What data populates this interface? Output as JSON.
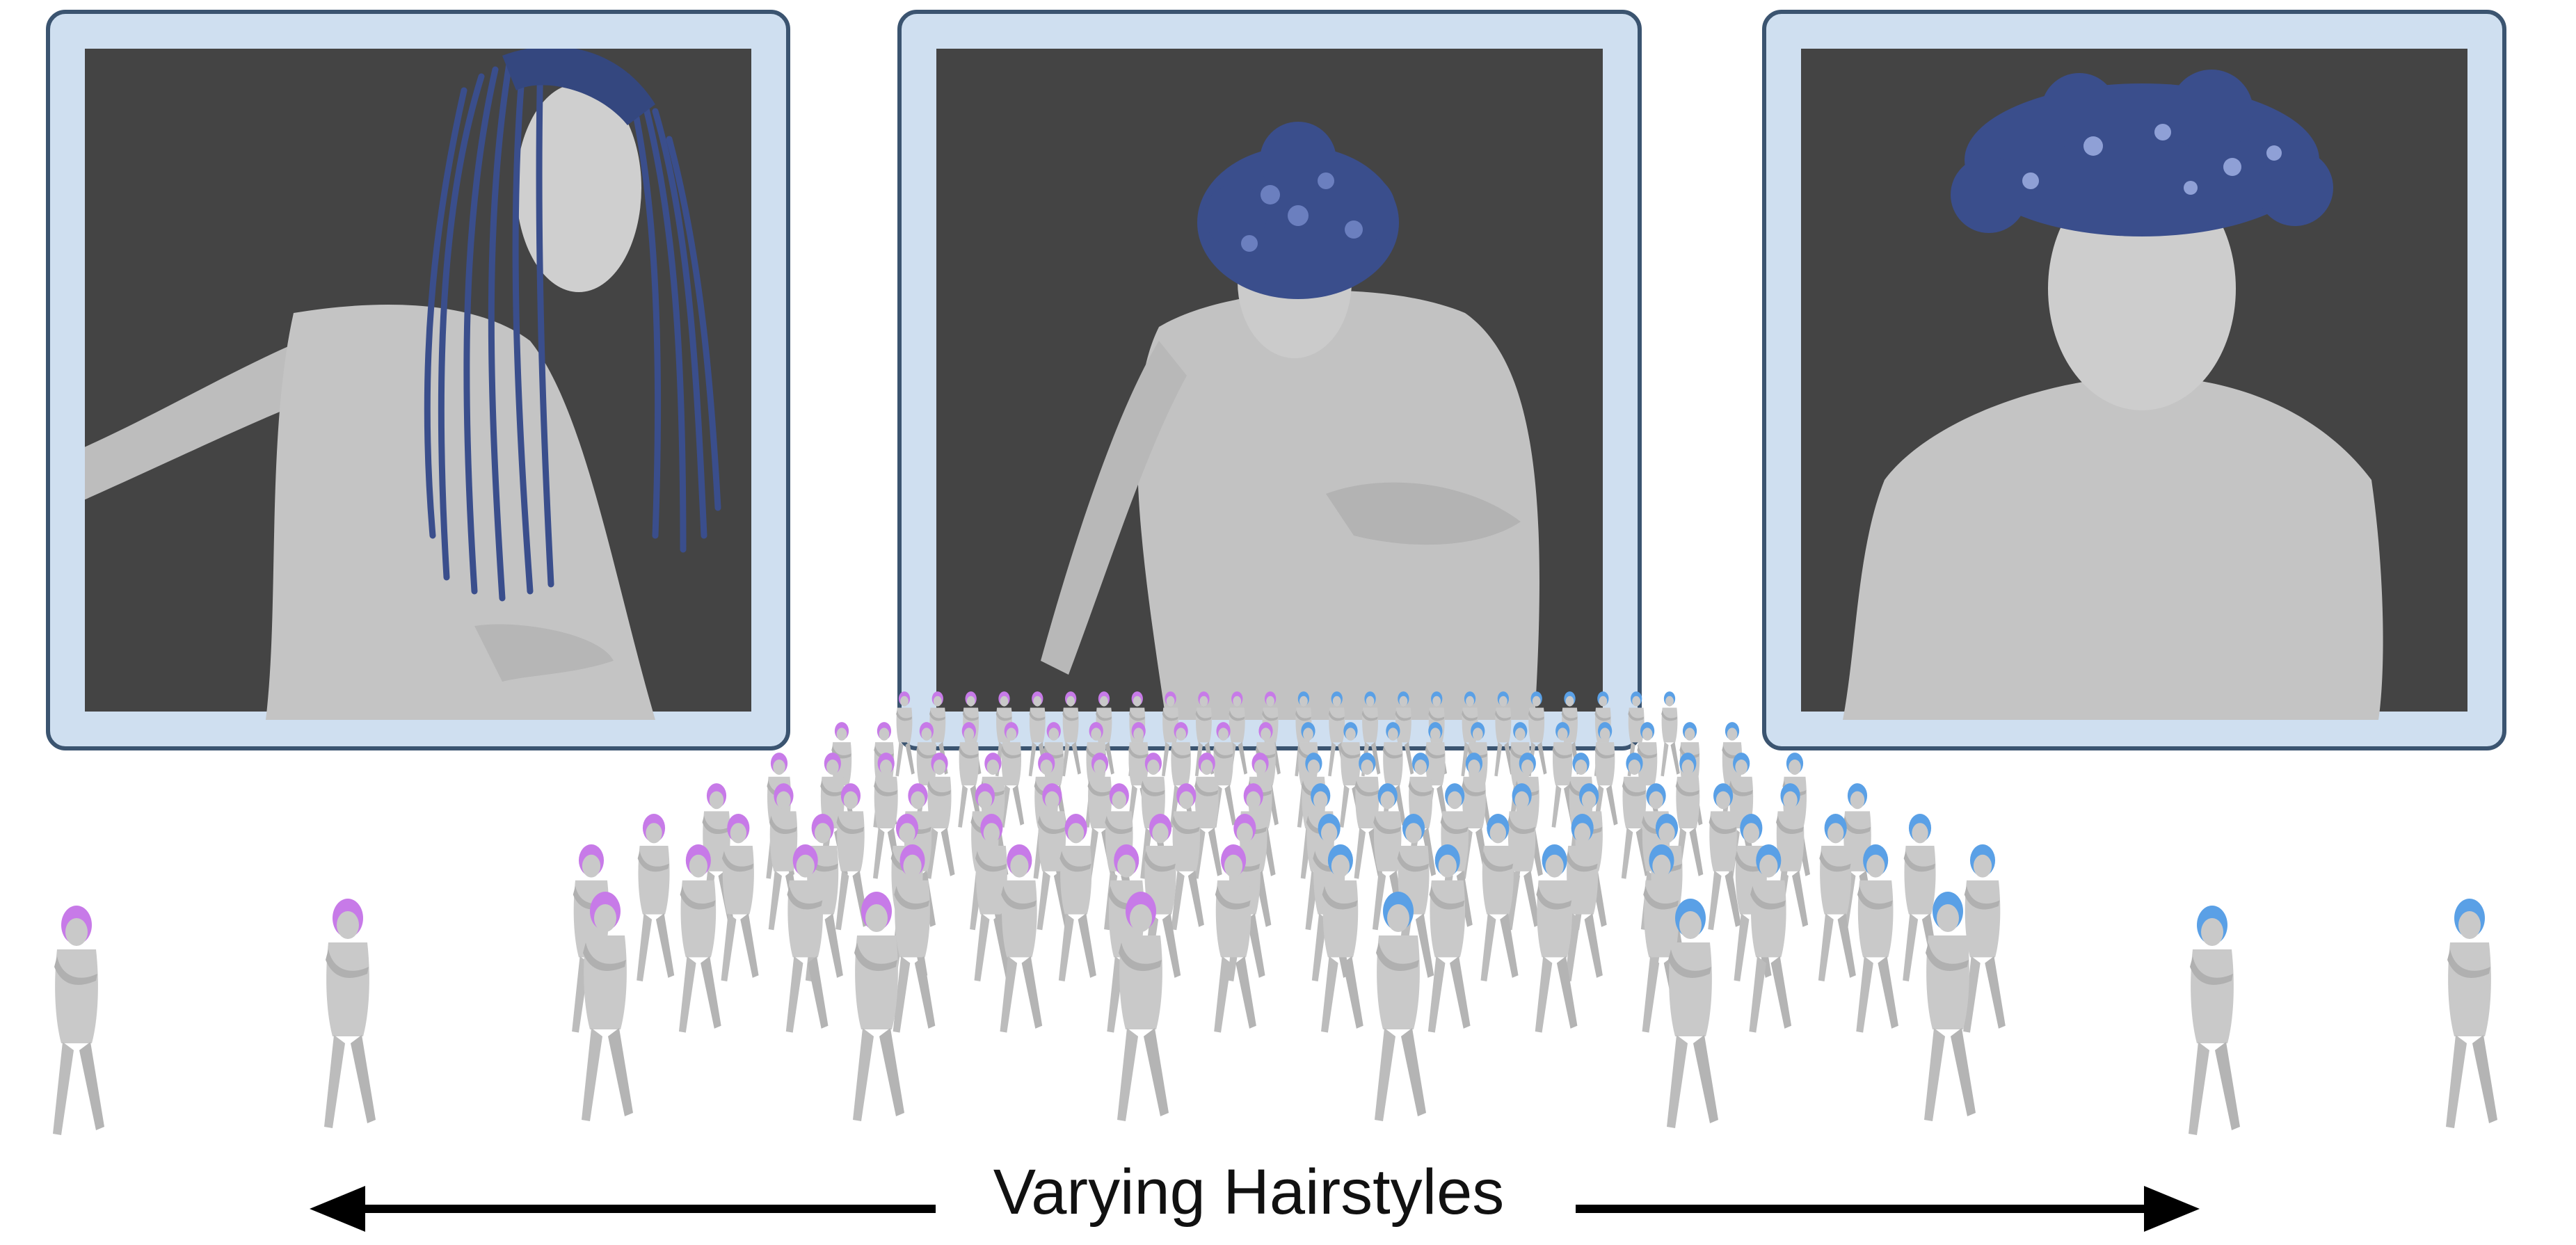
{
  "figure": {
    "caption": "Varying Hairstyles",
    "arrow_left_icon": "arrow-left-icon",
    "arrow_right_icon": "arrow-right-icon"
  },
  "colors": {
    "panel_border": "#3b5470",
    "panel_fill": "#cfdff0",
    "render_background": "#444444",
    "body_gray": "#c9c9c9",
    "hair_blue": "#3a4e8c",
    "crowd_hair_purple": "#c77ae8",
    "crowd_hair_blue": "#5aa0e6"
  }
}
